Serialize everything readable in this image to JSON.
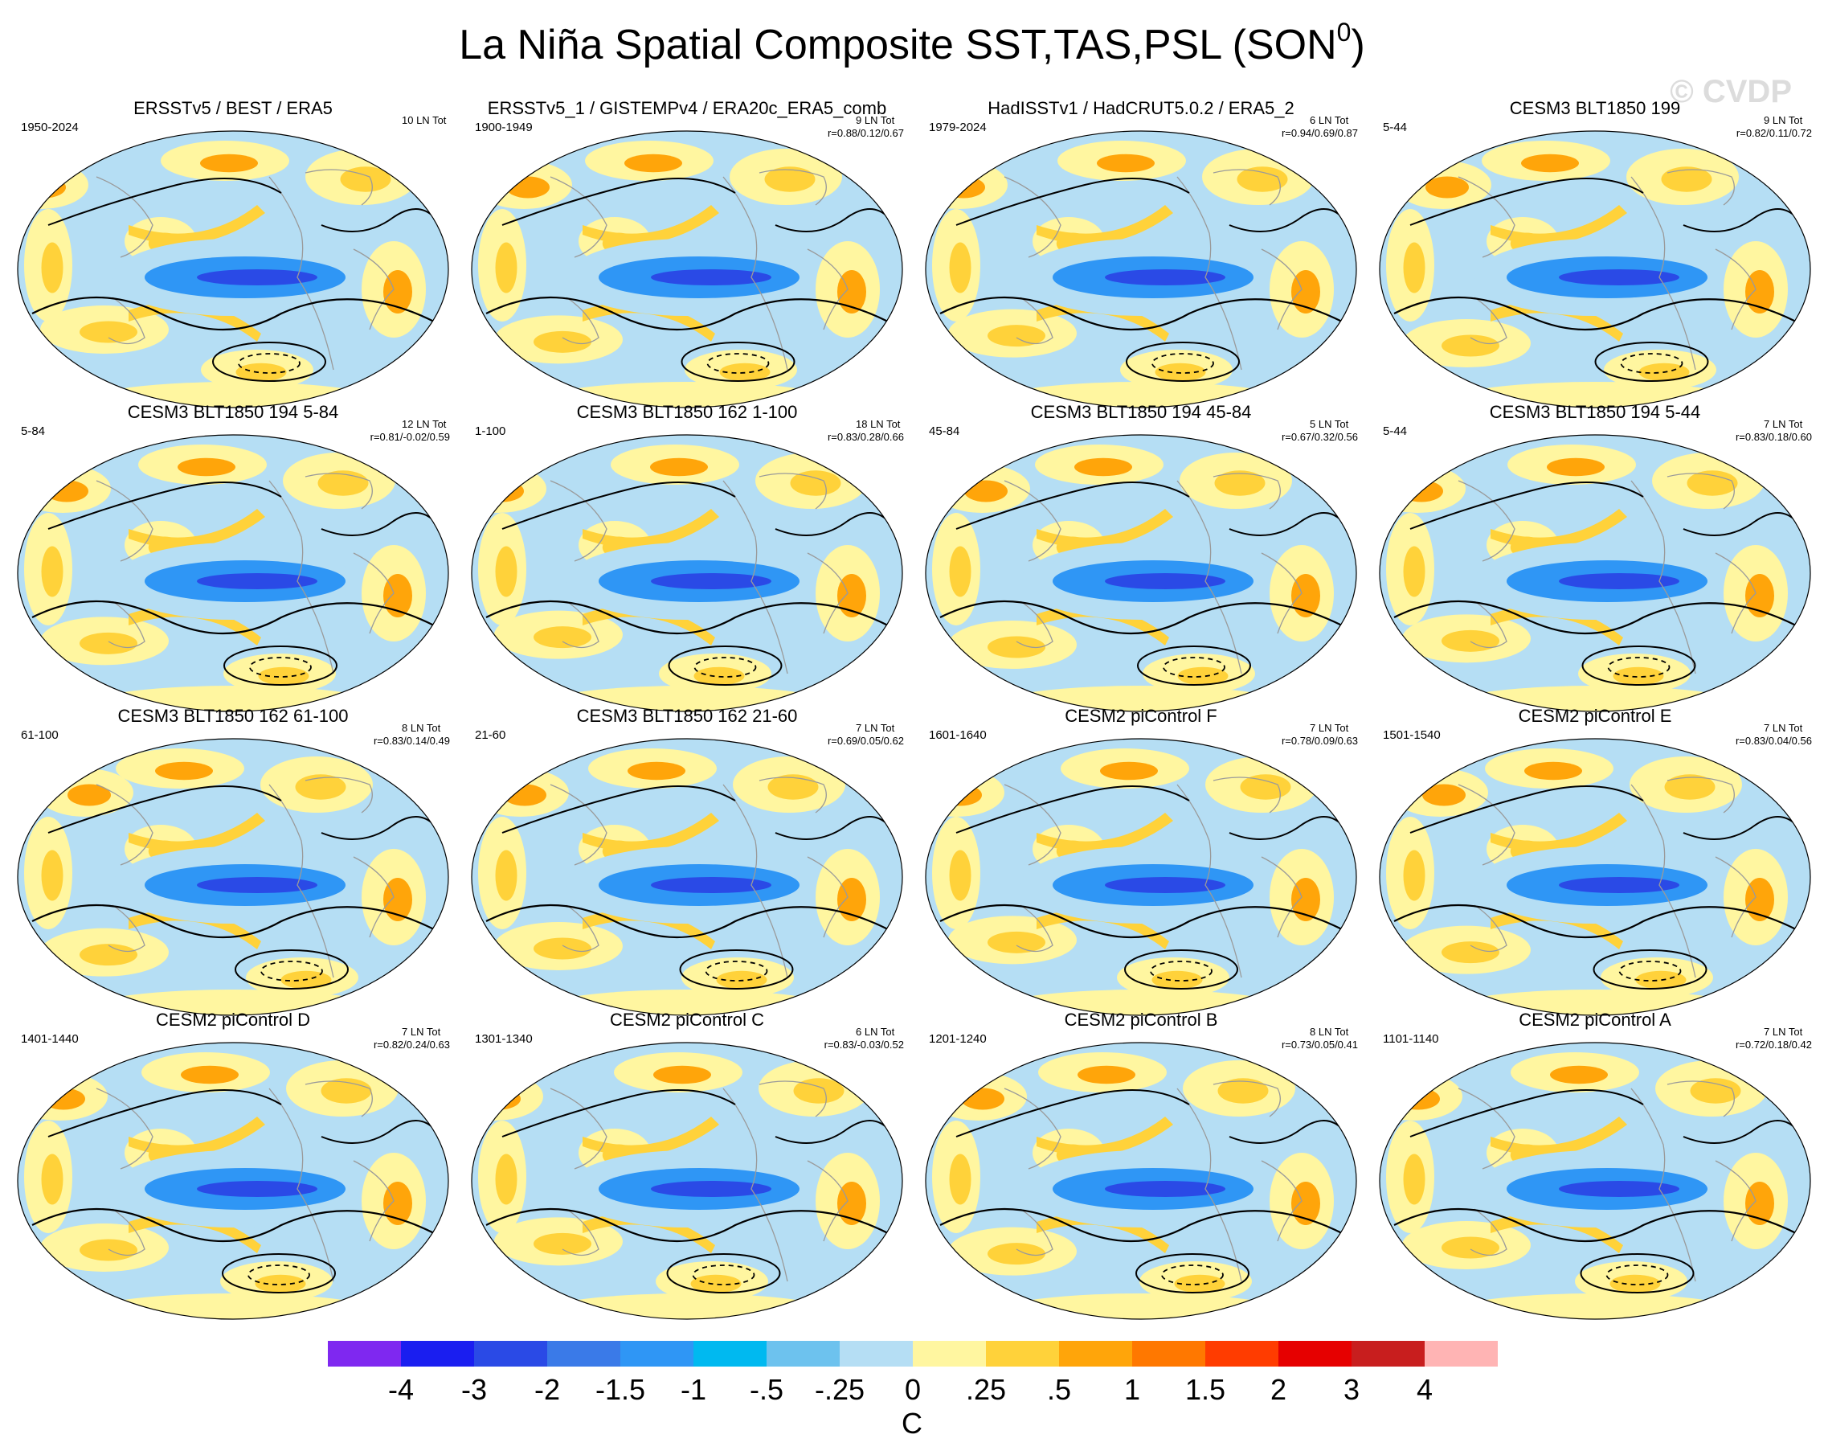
{
  "header": {
    "title": "La Niña Spatial Composite SST,TAS,PSL (SON",
    "title_sup": "0",
    "title_close": ")",
    "watermark": "© CVDP"
  },
  "panels": [
    {
      "title": "ERSSTv5 / BEST / ERA5",
      "years": "1950-2024",
      "ln": "10 LN Tot",
      "stats": ""
    },
    {
      "title": "ERSSTv5_1 / GISTEMPv4 / ERA20c_ERA5_comb",
      "years": "1900-1949",
      "ln": "9 LN Tot",
      "stats": "r=0.88/0.12/0.67"
    },
    {
      "title": "HadISSTv1 / HadCRUT5.0.2 / ERA5_2",
      "years": "1979-2024",
      "ln": "6 LN Tot",
      "stats": "r=0.94/0.69/0.87"
    },
    {
      "title": "CESM3 BLT1850 199",
      "years": "5-44",
      "ln": "9 LN Tot",
      "stats": "r=0.82/0.11/0.72"
    },
    {
      "title": "CESM3 BLT1850 194 5-84",
      "years": "5-84",
      "ln": "12 LN Tot",
      "stats": "r=0.81/-0.02/0.59"
    },
    {
      "title": "CESM3 BLT1850 162 1-100",
      "years": "1-100",
      "ln": "18 LN Tot",
      "stats": "r=0.83/0.28/0.66"
    },
    {
      "title": "CESM3 BLT1850 194 45-84",
      "years": "45-84",
      "ln": "5 LN Tot",
      "stats": "r=0.67/0.32/0.56"
    },
    {
      "title": "CESM3 BLT1850 194 5-44",
      "years": "5-44",
      "ln": "7 LN Tot",
      "stats": "r=0.83/0.18/0.60"
    },
    {
      "title": "CESM3 BLT1850 162 61-100",
      "years": "61-100",
      "ln": "8 LN Tot",
      "stats": "r=0.83/0.14/0.49"
    },
    {
      "title": "CESM3 BLT1850 162 21-60",
      "years": "21-60",
      "ln": "7 LN Tot",
      "stats": "r=0.69/0.05/0.62"
    },
    {
      "title": "CESM2 piControl F",
      "years": "1601-1640",
      "ln": "7 LN Tot",
      "stats": "r=0.78/0.09/0.63"
    },
    {
      "title": "CESM2 piControl E",
      "years": "1501-1540",
      "ln": "7 LN Tot",
      "stats": "r=0.83/0.04/0.56"
    },
    {
      "title": "CESM2 piControl D",
      "years": "1401-1440",
      "ln": "7 LN Tot",
      "stats": "r=0.82/0.24/0.63"
    },
    {
      "title": "CESM2 piControl C",
      "years": "1301-1340",
      "ln": "6 LN Tot",
      "stats": "r=0.83/-0.03/0.52"
    },
    {
      "title": "CESM2 piControl B",
      "years": "1201-1240",
      "ln": "8 LN Tot",
      "stats": "r=0.73/0.05/0.41"
    },
    {
      "title": "CESM2 piControl A",
      "years": "1101-1140",
      "ln": "7 LN Tot",
      "stats": "r=0.72/0.18/0.42"
    }
  ],
  "colorbar": {
    "colors": [
      "#7f28f0",
      "#1a1ef0",
      "#2a4ae6",
      "#3a7ae8",
      "#2f96f5",
      "#00b9f0",
      "#6dc2ee",
      "#b5def4",
      "#fff6a0",
      "#ffd23a",
      "#ffa50a",
      "#ff7800",
      "#ff3c00",
      "#e60000",
      "#c81e1e",
      "#ffb4b4"
    ],
    "labels": [
      "-4",
      "-3",
      "-2",
      "-1.5",
      "-1",
      "-.5",
      "-.25",
      "0",
      ".25",
      ".5",
      "1",
      "1.5",
      "2",
      "3",
      "4"
    ],
    "unit": "C"
  },
  "map_colors": {
    "neutral_cool": "#b5def4",
    "neutral_warm": "#fff6a0",
    "cold_tongue": "#2f96f5",
    "cold_core": "#2a4ae6",
    "warm": "#ffd23a",
    "warm_strong": "#ffa50a",
    "contour": "#000000",
    "coast": "#9a9a9a"
  }
}
